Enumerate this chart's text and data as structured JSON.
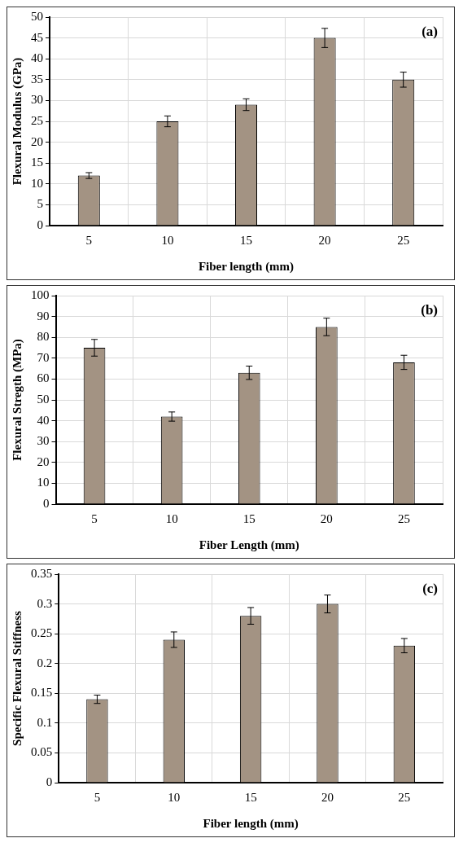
{
  "chart_data": [
    {
      "type": "bar",
      "categories": [
        "5",
        "10",
        "15",
        "20",
        "25"
      ],
      "values": [
        12,
        25,
        29,
        45,
        35
      ],
      "errors": [
        0.7,
        1.3,
        1.4,
        2.3,
        1.8
      ],
      "color": "#a39383",
      "xlabel": "Fiber length (mm)",
      "ylabel": "Flexural Modulus (GPa)",
      "ylim": [
        0,
        50
      ],
      "yticks": [
        0,
        5,
        10,
        15,
        20,
        25,
        30,
        35,
        40,
        45,
        50
      ],
      "grid": true,
      "annotations": [
        "(a)"
      ]
    },
    {
      "type": "bar",
      "categories": [
        "5",
        "10",
        "15",
        "20",
        "25"
      ],
      "values": [
        75,
        42,
        63,
        85,
        68
      ],
      "errors": [
        4,
        2.2,
        3.2,
        4.2,
        3.4
      ],
      "color": "#a39383",
      "xlabel": "Fiber Length (mm)",
      "ylabel": "Flexural Stregth (MPa)",
      "ylim": [
        0,
        100
      ],
      "yticks": [
        0,
        10,
        20,
        30,
        40,
        50,
        60,
        70,
        80,
        90,
        100
      ],
      "grid": true,
      "annotations": [
        "(b)"
      ]
    },
    {
      "type": "bar",
      "categories": [
        "5",
        "10",
        "15",
        "20",
        "25"
      ],
      "values": [
        0.14,
        0.24,
        0.28,
        0.3,
        0.23
      ],
      "errors": [
        0.007,
        0.013,
        0.014,
        0.015,
        0.012
      ],
      "color": "#a39383",
      "xlabel": "Fiber length (mm)",
      "ylabel": "Specific Flexural Stiffness",
      "ylim": [
        0,
        0.35
      ],
      "yticks": [
        0,
        0.05,
        0.1,
        0.15,
        0.2,
        0.25,
        0.3,
        0.35
      ],
      "grid": true,
      "annotations": [
        "(c)"
      ]
    }
  ]
}
